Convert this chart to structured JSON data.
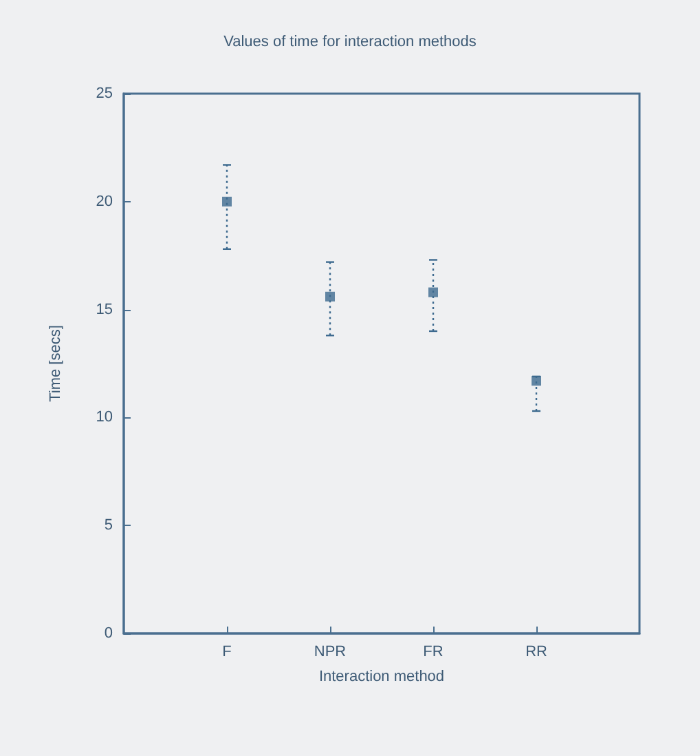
{
  "chart_data": {
    "type": "scatter",
    "title": "Values of time for interaction methods",
    "xlabel": "Interaction method",
    "ylabel": "Time [secs]",
    "categories": [
      null,
      "F",
      "NPR",
      "FR",
      "RR",
      null
    ],
    "values": [
      null,
      20,
      15.6,
      15.8,
      11.7,
      null
    ],
    "errors": [
      null,
      [
        17.8,
        21.7
      ],
      [
        13.8,
        17.2
      ],
      [
        14.0,
        17.3
      ],
      [
        10.3,
        11.9
      ],
      null
    ],
    "color": "#3d6a8f",
    "marker": "square",
    "line_style": "dotted",
    "grid": false,
    "ylim": [
      0,
      25
    ],
    "yticks": [
      0,
      5,
      10,
      15,
      20,
      25
    ]
  }
}
